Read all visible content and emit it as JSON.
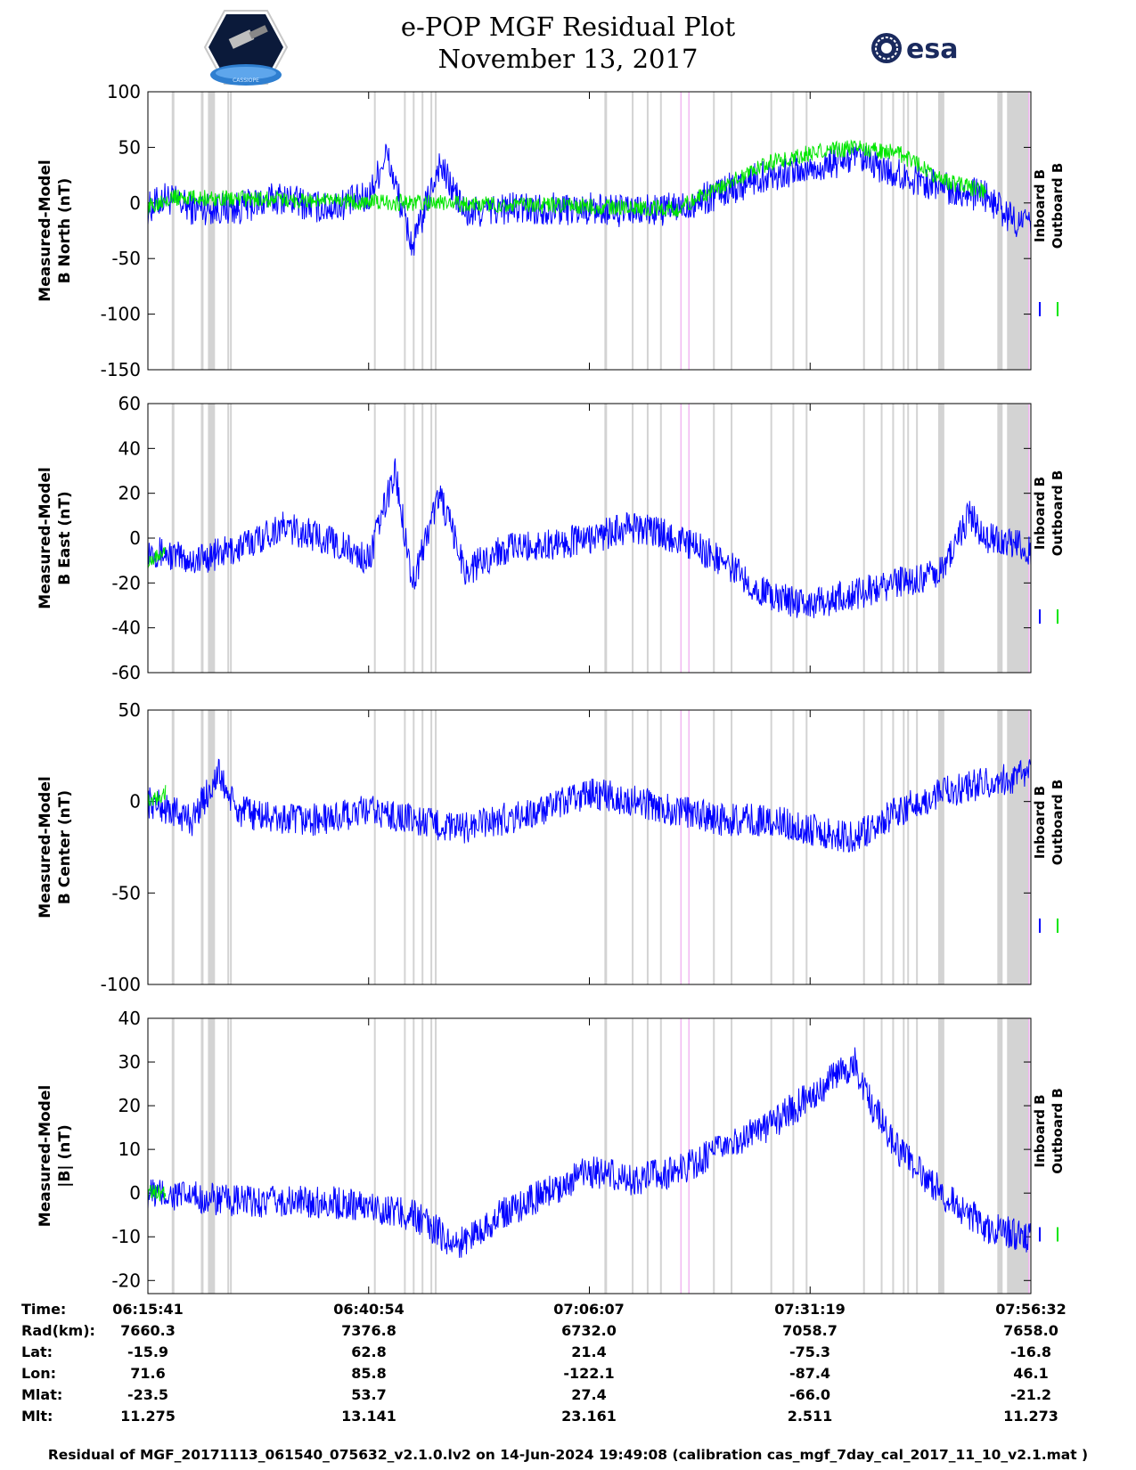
{
  "header": {
    "title_line1": "e-POP MGF Residual Plot",
    "title_line2": "November 13, 2017",
    "logo_left_text": "CASSIOPE",
    "logo_right_text": "esa"
  },
  "colors": {
    "inboard": "#0000ff",
    "outboard": "#00e600",
    "gap": "#d3d3d3",
    "gap_pink": "#f2b8f2"
  },
  "chart_data": [
    {
      "type": "line",
      "ylabel_line1": "Measured-Model",
      "ylabel_line2": "B North (nT)",
      "ylim": [
        -150,
        100
      ],
      "yticks": [
        "100",
        "50",
        "0",
        "-50",
        "-100",
        "-150"
      ],
      "legend": [
        "Inboard B",
        "Outboard B"
      ],
      "series": [
        {
          "name": "Inboard B",
          "color": "#0000ff",
          "x": [
            0,
            0.02,
            0.05,
            0.1,
            0.15,
            0.2,
            0.25,
            0.27,
            0.3,
            0.33,
            0.36,
            0.4,
            0.45,
            0.5,
            0.55,
            0.6,
            0.65,
            0.7,
            0.75,
            0.8,
            0.85,
            0.9,
            0.95,
            0.98,
            1
          ],
          "y": [
            -5,
            5,
            -5,
            -5,
            5,
            -5,
            5,
            45,
            -40,
            35,
            -10,
            -5,
            -5,
            -5,
            -8,
            -5,
            10,
            25,
            30,
            40,
            25,
            15,
            5,
            -15,
            -20
          ]
        },
        {
          "name": "Outboard B",
          "color": "#00e600",
          "x": [
            0,
            0.02,
            0.6,
            0.65,
            0.7,
            0.75,
            0.8,
            0.85,
            0.9,
            0.95
          ],
          "y": [
            -5,
            5,
            -5,
            15,
            35,
            45,
            50,
            45,
            20,
            10
          ]
        }
      ]
    },
    {
      "type": "line",
      "ylabel_line1": "Measured-Model",
      "ylabel_line2": "B East (nT)",
      "ylim": [
        -60,
        60
      ],
      "yticks": [
        "60",
        "40",
        "20",
        "0",
        "-20",
        "-40",
        "-60"
      ],
      "legend": [
        "Inboard B",
        "Outboard B"
      ],
      "series": [
        {
          "name": "Inboard B",
          "color": "#0000ff",
          "x": [
            0,
            0.05,
            0.1,
            0.15,
            0.2,
            0.25,
            0.28,
            0.3,
            0.33,
            0.36,
            0.4,
            0.45,
            0.5,
            0.55,
            0.6,
            0.65,
            0.7,
            0.75,
            0.8,
            0.85,
            0.9,
            0.93,
            0.95,
            1
          ],
          "y": [
            -5,
            -10,
            -5,
            5,
            0,
            -10,
            30,
            -20,
            20,
            -15,
            -5,
            -3,
            0,
            5,
            0,
            -10,
            -25,
            -30,
            -25,
            -20,
            -15,
            10,
            0,
            -5
          ]
        },
        {
          "name": "Outboard B",
          "color": "#00e600",
          "x": [
            0,
            0.02
          ],
          "y": [
            -10,
            -5
          ]
        }
      ]
    },
    {
      "type": "line",
      "ylabel_line1": "Measured-Model",
      "ylabel_line2": "B Center (nT)",
      "ylim": [
        -100,
        50
      ],
      "yticks": [
        "50",
        "0",
        "-50",
        "-100"
      ],
      "legend": [
        "Inboard B",
        "Outboard B"
      ],
      "series": [
        {
          "name": "Inboard B",
          "color": "#0000ff",
          "x": [
            0,
            0.05,
            0.08,
            0.1,
            0.15,
            0.2,
            0.25,
            0.3,
            0.35,
            0.4,
            0.45,
            0.5,
            0.55,
            0.6,
            0.65,
            0.7,
            0.75,
            0.8,
            0.85,
            0.9,
            0.95,
            1
          ],
          "y": [
            0,
            -10,
            15,
            -5,
            -10,
            -10,
            -5,
            -10,
            -15,
            -10,
            -5,
            5,
            0,
            -5,
            -10,
            -10,
            -15,
            -20,
            -5,
            5,
            10,
            15
          ]
        },
        {
          "name": "Outboard B",
          "color": "#00e600",
          "x": [
            0,
            0.02
          ],
          "y": [
            0,
            5
          ]
        }
      ]
    },
    {
      "type": "line",
      "ylabel_line1": "Measured-Model",
      "ylabel_line2": "|B| (nT)",
      "ylim": [
        -23,
        40
      ],
      "yticks": [
        "40",
        "30",
        "20",
        "10",
        "0",
        "-10",
        "-20"
      ],
      "legend": [
        "Inboard B",
        "Outboard B"
      ],
      "series": [
        {
          "name": "Inboard B",
          "color": "#0000ff",
          "x": [
            0,
            0.1,
            0.2,
            0.25,
            0.3,
            0.35,
            0.4,
            0.45,
            0.5,
            0.55,
            0.6,
            0.65,
            0.7,
            0.75,
            0.8,
            0.82,
            0.85,
            0.9,
            0.95,
            1
          ],
          "y": [
            0,
            -2,
            -2,
            -3,
            -5,
            -12,
            -5,
            0,
            5,
            3,
            5,
            10,
            15,
            22,
            30,
            20,
            10,
            0,
            -8,
            -10
          ]
        },
        {
          "name": "Outboard B",
          "color": "#00e600",
          "x": [
            0,
            0.02
          ],
          "y": [
            0,
            0
          ]
        }
      ]
    }
  ],
  "footer": {
    "labels": [
      "Time:",
      "Rad(km):",
      "Lat:",
      "Lon:",
      "Mlat:",
      "Mlt:"
    ],
    "columns": [
      [
        "06:15:41",
        "7660.3",
        "-15.9",
        "71.6",
        "-23.5",
        "11.275"
      ],
      [
        "06:40:54",
        "7376.8",
        "62.8",
        "85.8",
        "53.7",
        "13.141"
      ],
      [
        "07:06:07",
        "6732.0",
        "21.4",
        "-122.1",
        "27.4",
        "23.161"
      ],
      [
        "07:31:19",
        "7058.7",
        "-75.3",
        "-87.4",
        "-66.0",
        "2.511"
      ],
      [
        "07:56:32",
        "7658.0",
        "-16.8",
        "46.1",
        "-21.2",
        "11.273"
      ]
    ],
    "caption": "Residual of MGF_20171113_061540_075632_v2.1.0.lv2 on 14-Jun-2024 19:49:08 (calibration cas_mgf_7day_cal_2017_11_10_v2.1.mat )"
  }
}
